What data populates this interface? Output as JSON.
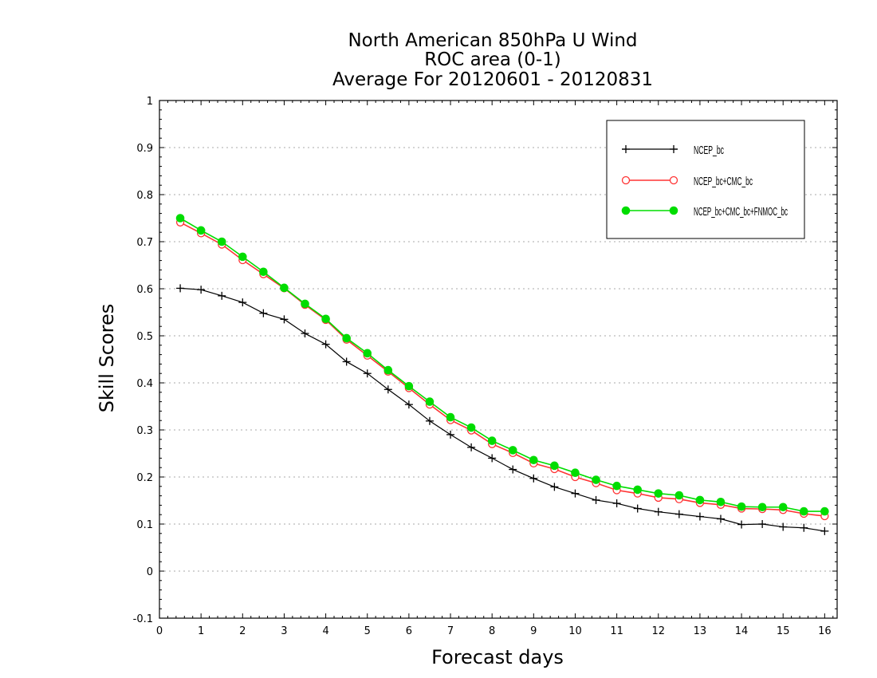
{
  "chart_data": {
    "type": "line",
    "title_lines": [
      "North American 850hPa U Wind",
      "ROC area (0-1)",
      "Average For 20120601 - 20120831"
    ],
    "xlabel": "Forecast days",
    "ylabel": "Skill Scores",
    "xlim": [
      0,
      16.3
    ],
    "ylim": [
      -0.1,
      1
    ],
    "xticks": [
      0,
      1,
      2,
      3,
      4,
      5,
      6,
      7,
      8,
      9,
      10,
      11,
      12,
      13,
      14,
      15,
      16
    ],
    "xtick_labels": [
      "0",
      "1",
      "2",
      "3",
      "4",
      "5",
      "6",
      "7",
      "8",
      "9",
      "10",
      "11",
      "12",
      "13",
      "14",
      "15",
      "16"
    ],
    "yticks": [
      -0.1,
      0,
      0.1,
      0.2,
      0.3,
      0.4,
      0.5,
      0.6,
      0.7,
      0.8,
      0.9,
      1
    ],
    "ytick_labels": [
      "-0.1",
      "0",
      "0.1",
      "0.2",
      "0.3",
      "0.4",
      "0.5",
      "0.6",
      "0.7",
      "0.8",
      "0.9",
      "1"
    ],
    "grid": true,
    "legend_position": "top-right",
    "x": [
      0.5,
      1,
      1.5,
      2,
      2.5,
      3,
      3.5,
      4,
      4.5,
      5,
      5.5,
      6,
      6.5,
      7,
      7.5,
      8,
      8.5,
      9,
      9.5,
      10,
      10.5,
      11,
      11.5,
      12,
      12.5,
      13,
      13.5,
      14,
      14.5,
      15,
      15.5,
      16
    ],
    "series": [
      {
        "name": "NCEP_bc",
        "color": "#000000",
        "marker": "plus",
        "values": [
          0.601,
          0.598,
          0.585,
          0.571,
          0.548,
          0.535,
          0.505,
          0.482,
          0.445,
          0.42,
          0.386,
          0.354,
          0.319,
          0.29,
          0.263,
          0.24,
          0.216,
          0.197,
          0.179,
          0.165,
          0.151,
          0.144,
          0.133,
          0.126,
          0.121,
          0.116,
          0.111,
          0.099,
          0.1,
          0.094,
          0.092,
          0.085
        ]
      },
      {
        "name": "NCEP_bc+CMC_bc",
        "color": "#ff3333",
        "marker": "open-circle",
        "values": [
          0.741,
          0.718,
          0.694,
          0.661,
          0.631,
          0.601,
          0.566,
          0.534,
          0.492,
          0.458,
          0.424,
          0.389,
          0.354,
          0.321,
          0.299,
          0.27,
          0.251,
          0.229,
          0.217,
          0.2,
          0.187,
          0.172,
          0.165,
          0.156,
          0.153,
          0.145,
          0.141,
          0.133,
          0.132,
          0.13,
          0.122,
          0.117
        ]
      },
      {
        "name": "NCEP_bc+CMC_bc+FNMOC_bc",
        "color": "#00dd00",
        "marker": "filled-circle",
        "values": [
          0.75,
          0.724,
          0.7,
          0.668,
          0.636,
          0.602,
          0.568,
          0.536,
          0.495,
          0.463,
          0.427,
          0.393,
          0.36,
          0.327,
          0.305,
          0.277,
          0.257,
          0.236,
          0.224,
          0.209,
          0.194,
          0.181,
          0.173,
          0.165,
          0.161,
          0.151,
          0.147,
          0.137,
          0.136,
          0.136,
          0.127,
          0.127
        ]
      }
    ]
  }
}
